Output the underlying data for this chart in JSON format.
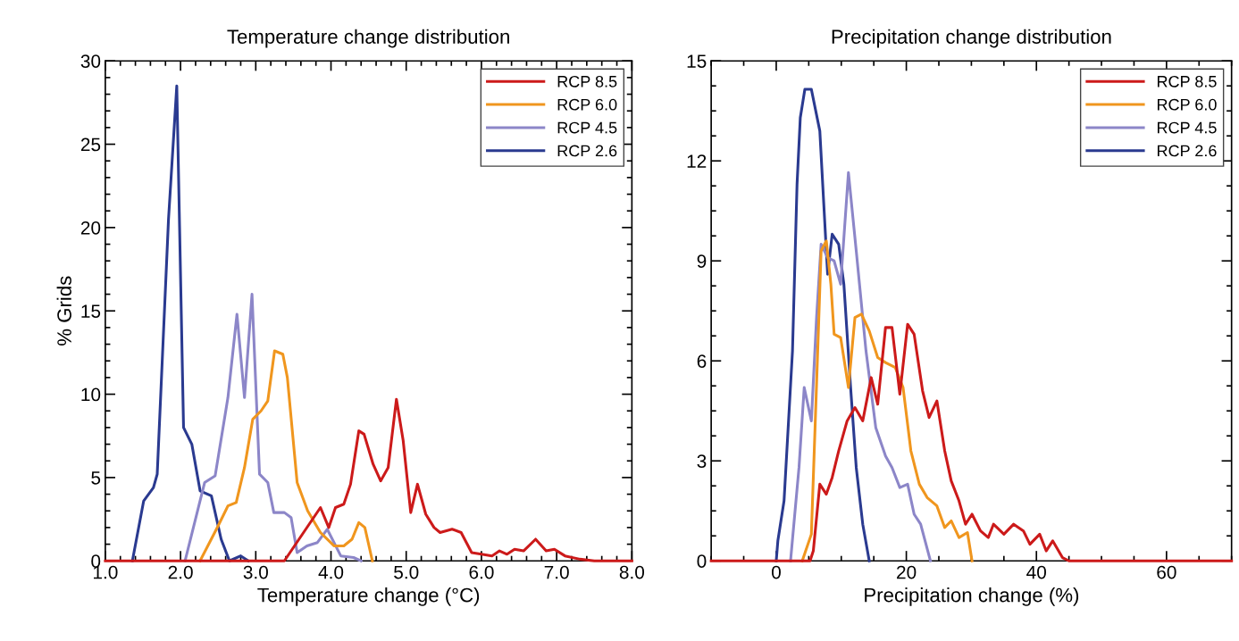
{
  "chart_data": [
    {
      "type": "line",
      "title": "Temperature change distribution",
      "xlabel": "Temperature change (°C)",
      "ylabel": "% Grids",
      "xlim": [
        1,
        8
      ],
      "ylim": [
        0,
        30
      ],
      "xticks": [
        {
          "value": 1,
          "label": "1.0"
        },
        {
          "value": 2,
          "label": "2.0"
        },
        {
          "value": 3,
          "label": "3.0"
        },
        {
          "value": 4,
          "label": "4.0"
        },
        {
          "value": 5,
          "label": "5.0"
        },
        {
          "value": 6,
          "label": "6.0"
        },
        {
          "value": 7,
          "label": "7.0"
        },
        {
          "value": 8,
          "label": "8.0"
        }
      ],
      "yticks": [
        0,
        5,
        10,
        15,
        20,
        25,
        30
      ],
      "grid": false,
      "legend": "top right",
      "line_style": "solid",
      "marker": "none",
      "series": [
        {
          "name": "RCP 8.5",
          "color": "#cc1a1a",
          "x": [
            1.0,
            2.0,
            3.0,
            3.38,
            3.86,
            3.97,
            4.06,
            4.17,
            4.26,
            4.37,
            4.44,
            4.56,
            4.66,
            4.76,
            4.87,
            4.96,
            5.06,
            5.15,
            5.26,
            5.37,
            5.45,
            5.61,
            5.73,
            5.87,
            6.0,
            6.14,
            6.24,
            6.34,
            6.44,
            6.56,
            6.72,
            6.86,
            6.97,
            7.11,
            7.31,
            7.5,
            8.0
          ],
          "values": [
            0,
            0,
            0,
            0,
            3.2,
            2.0,
            3.2,
            3.4,
            4.6,
            7.8,
            7.6,
            5.8,
            4.8,
            5.6,
            9.7,
            7.2,
            2.9,
            4.6,
            2.8,
            2.0,
            1.7,
            1.9,
            1.7,
            0.5,
            0.4,
            0.3,
            0.6,
            0.4,
            0.7,
            0.6,
            1.3,
            0.6,
            0.7,
            0.3,
            0.1,
            0,
            0
          ]
        },
        {
          "name": "RCP 6.0",
          "color": "#f0961e",
          "x": [
            2.26,
            2.5,
            2.63,
            2.74,
            2.85,
            2.96,
            3.07,
            3.16,
            3.25,
            3.36,
            3.42,
            3.55,
            3.69,
            3.86,
            4.04,
            4.17,
            4.28,
            4.37,
            4.45,
            4.55
          ],
          "values": [
            0,
            2.1,
            3.3,
            3.5,
            5.6,
            8.5,
            9.0,
            9.6,
            12.6,
            12.4,
            11.0,
            4.7,
            3.0,
            1.7,
            0.9,
            0.9,
            1.3,
            2.3,
            2.0,
            0
          ]
        },
        {
          "name": "RCP 4.5",
          "color": "#8c86c8",
          "x": [
            2.06,
            2.32,
            2.46,
            2.63,
            2.75,
            2.85,
            2.95,
            3.05,
            3.16,
            3.24,
            3.38,
            3.47,
            3.55,
            3.68,
            3.82,
            3.95,
            4.13,
            4.3,
            4.4
          ],
          "values": [
            0,
            4.7,
            5.1,
            9.8,
            14.8,
            9.8,
            16.0,
            5.2,
            4.7,
            2.9,
            2.9,
            2.6,
            0.5,
            0.9,
            1.1,
            1.9,
            0.3,
            0.2,
            0
          ]
        },
        {
          "name": "RCP 2.6",
          "color": "#2a3a90",
          "x": [
            1.36,
            1.51,
            1.64,
            1.69,
            1.84,
            1.95,
            2.04,
            2.15,
            2.26,
            2.41,
            2.54,
            2.65,
            2.8,
            2.9
          ],
          "values": [
            0,
            3.6,
            4.4,
            5.2,
            20.5,
            28.5,
            8.0,
            7.0,
            4.2,
            3.9,
            1.3,
            0,
            0.3,
            0
          ]
        }
      ]
    },
    {
      "type": "line",
      "title": "Precipitation change distribution",
      "xlabel": "Precipitation change (%)",
      "xlim": [
        -10,
        70
      ],
      "ylim": [
        0,
        15
      ],
      "xticks": [
        0,
        20,
        40,
        60
      ],
      "yticks": [
        0,
        3,
        6,
        9,
        12,
        15
      ],
      "grid": false,
      "legend": "top right",
      "line_style": "solid",
      "marker": "none",
      "series": [
        {
          "name": "RCP 8.5",
          "color": "#cc1a1a",
          "x": [
            -10,
            5.2,
            5.7,
            6.7,
            7.7,
            8.6,
            9.6,
            10.9,
            12.1,
            13.3,
            14.6,
            15.6,
            16.8,
            17.8,
            19.0,
            20.2,
            21.2,
            22.5,
            23.5,
            24.7,
            25.9,
            26.9,
            28.1,
            29.1,
            30.1,
            31.4,
            32.6,
            33.4,
            35,
            36.5,
            38,
            39,
            40.5,
            41.5,
            42.5,
            44,
            45,
            70
          ],
          "values": [
            0,
            0,
            0.3,
            2.3,
            2.0,
            2.5,
            3.3,
            4.2,
            4.6,
            4.2,
            5.5,
            4.7,
            7.0,
            7.0,
            5.0,
            7.1,
            6.8,
            5.1,
            4.3,
            4.8,
            3.3,
            2.4,
            1.8,
            1.1,
            1.4,
            0.9,
            0.7,
            1.1,
            0.8,
            1.1,
            0.9,
            0.5,
            0.8,
            0.3,
            0.6,
            0.1,
            0,
            0
          ]
        },
        {
          "name": "RCP 6.0",
          "color": "#f0961e",
          "x": [
            4.0,
            5.4,
            6.2,
            6.9,
            7.7,
            8.4,
            8.9,
            9.9,
            11.1,
            12.1,
            13.1,
            14.3,
            15.6,
            16.8,
            18.3,
            19.5,
            20.7,
            22.0,
            23.2,
            24.7,
            25.9,
            26.9,
            28.1,
            29.4,
            30.1
          ],
          "values": [
            0,
            0.8,
            5.3,
            9.3,
            9.6,
            8.3,
            6.8,
            6.7,
            5.2,
            7.3,
            7.4,
            6.9,
            6.1,
            5.95,
            5.8,
            5.2,
            3.3,
            2.3,
            1.9,
            1.65,
            1.0,
            1.2,
            0.7,
            0.85,
            0
          ]
        },
        {
          "name": "RCP 4.5",
          "color": "#8c86c8",
          "x": [
            2.2,
            3.5,
            4.3,
            5.4,
            6.2,
            6.9,
            7.9,
            8.9,
            9.9,
            11.1,
            12.3,
            13.8,
            15.3,
            16.8,
            17.8,
            19.0,
            20.2,
            21.2,
            22.2,
            23.7
          ],
          "values": [
            0,
            2.8,
            5.2,
            4.2,
            7.3,
            9.5,
            9.1,
            9.0,
            8.3,
            11.65,
            9.3,
            6.3,
            4.0,
            3.15,
            2.8,
            2.2,
            2.3,
            1.4,
            1.1,
            0
          ]
        },
        {
          "name": "RCP 2.6",
          "color": "#2a3a90",
          "x": [
            0,
            0.25,
            1.2,
            2.5,
            3.2,
            3.7,
            4.4,
            5.4,
            6.7,
            7.7,
            7.9,
            8.6,
            9.6,
            10.4,
            11.4,
            12.3,
            13.3,
            14.3
          ],
          "values": [
            0,
            0.6,
            1.8,
            6.3,
            11.3,
            13.3,
            14.15,
            14.15,
            12.9,
            9.3,
            8.6,
            9.8,
            9.5,
            8.3,
            5.3,
            2.8,
            1.1,
            0
          ]
        }
      ]
    }
  ]
}
